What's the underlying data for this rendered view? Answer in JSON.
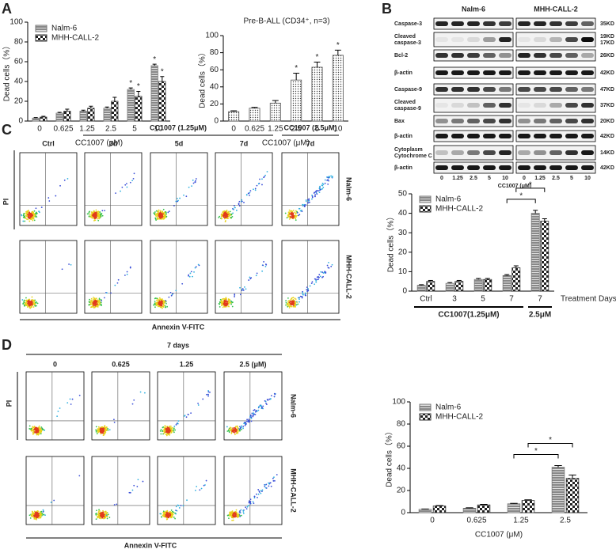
{
  "panels": [
    "A",
    "B",
    "C",
    "D"
  ],
  "blot": {
    "cell_lines": [
      "Nalm-6",
      "MHH-CALL-2"
    ],
    "rows": [
      {
        "label": [
          "Caspase-3"
        ],
        "kd": [
          "35KD"
        ]
      },
      {
        "label": [
          "Cleaved",
          "caspase-3"
        ],
        "kd": [
          "19KD",
          "17KD"
        ]
      },
      {
        "label": [
          "Bcl-2"
        ],
        "kd": [
          "26KD"
        ]
      },
      {
        "label": [
          "β-actin"
        ],
        "kd": [
          "42KD"
        ]
      },
      {
        "label": [
          "Caspase-9"
        ],
        "kd": [
          "47KD"
        ]
      },
      {
        "label": [
          "Cleaved",
          "caspase-9"
        ],
        "kd": [
          "37KD"
        ]
      },
      {
        "label": [
          "Bax"
        ],
        "kd": [
          "20KD"
        ]
      },
      {
        "label": [
          "β-actin"
        ],
        "kd": [
          "42KD"
        ]
      },
      {
        "label": [
          "Cytoplasm",
          "Cytochrome C"
        ],
        "kd": [
          "14KD"
        ]
      },
      {
        "label": [
          "β-actin"
        ],
        "kd": [
          "42KD"
        ]
      }
    ],
    "lanes": [
      "0",
      "1.25",
      "2.5",
      "5",
      "10"
    ],
    "x_label": "CC1007 (μM)"
  },
  "flow_c": {
    "header_groups": [
      "CC1007 (1.25μM)",
      "CC1007 (2.5μM)"
    ],
    "columns": [
      "Ctrl",
      "3d",
      "5d",
      "7d",
      "7d"
    ],
    "rows": [
      "Nalm-6",
      "MHH-CALL-2"
    ],
    "y_label": "PI",
    "x_label": "Annexin V-FITC"
  },
  "flow_d": {
    "header": "7 days",
    "columns": [
      "0",
      "0.625",
      "1.25",
      "2.5 (μM)"
    ],
    "rows": [
      "Nalm-6",
      "MHH-CALL-2"
    ],
    "y_label": "PI",
    "x_label": "Annexin V-FITC"
  },
  "chart_data": [
    {
      "type": "bar",
      "y_label": "Dead cells（%）",
      "x_label": "CC1007 (μM)",
      "categories": [
        "0",
        "0.625",
        "1.25",
        "2.5",
        "5",
        "10"
      ],
      "series": [
        {
          "name": "Nalm-6",
          "color": "#777777",
          "pattern": "lines",
          "values": [
            3,
            8,
            10,
            13,
            32,
            56
          ],
          "errors": [
            0.5,
            0.8,
            1,
            1.2,
            1.5,
            1.5
          ],
          "significance": [
            null,
            null,
            null,
            null,
            "*",
            "*"
          ]
        },
        {
          "name": "MHH-CALL-2",
          "color": "#333333",
          "pattern": "checks",
          "values": [
            4,
            10,
            13,
            20,
            25,
            40
          ],
          "errors": [
            0.8,
            2,
            2,
            4,
            5,
            5
          ],
          "significance": [
            null,
            null,
            null,
            null,
            "*",
            "*"
          ]
        }
      ],
      "ylim": [
        0,
        100
      ],
      "yticks": [
        0,
        20,
        40,
        60,
        80,
        100
      ],
      "legend": "upper left"
    },
    {
      "type": "bar",
      "title": "Pre-B-ALL (CD34⁺, n=3)",
      "y_label": "Dead cells（%）",
      "x_label": "CC1007 (μM)",
      "categories": [
        "0",
        "0.625",
        "1.25",
        "2.5",
        "5",
        "10"
      ],
      "series": [
        {
          "color": "#555555",
          "pattern": "dots",
          "values": [
            11,
            15,
            21,
            48,
            63,
            77
          ],
          "errors": [
            1,
            1,
            3,
            8,
            6,
            6
          ],
          "significance": [
            null,
            null,
            null,
            "*",
            "*",
            "*"
          ]
        }
      ],
      "ylim": [
        0,
        100
      ],
      "yticks": [
        0,
        20,
        40,
        60,
        80,
        100
      ]
    },
    {
      "type": "bar",
      "y_label": "Dead cells（%）",
      "x_label": "Treatment Days",
      "categories": [
        "Ctrl",
        "3",
        "5",
        "7",
        "7"
      ],
      "groups": [
        {
          "label": "CC1007(1.25μM)",
          "from": 0,
          "to": 3
        },
        {
          "label": "2.5μM",
          "from": 4,
          "to": 4
        }
      ],
      "series": [
        {
          "name": "Nalm-6",
          "color": "#777777",
          "pattern": "lines",
          "values": [
            3,
            4,
            6,
            8,
            40
          ],
          "errors": [
            0.3,
            0.4,
            0.5,
            0.5,
            1.5
          ]
        },
        {
          "name": "MHH-CALL-2",
          "color": "#333333",
          "pattern": "checks",
          "values": [
            5,
            5,
            6,
            12,
            36
          ],
          "errors": [
            0.5,
            0.5,
            0.5,
            1,
            1.2
          ]
        }
      ],
      "brackets": [
        {
          "from": 3,
          "to": 4,
          "series": 0,
          "label": "*"
        },
        {
          "from": 3,
          "to": 4,
          "series": 1,
          "label": "*"
        }
      ],
      "ylim": [
        0,
        50
      ],
      "yticks": [
        0,
        10,
        20,
        30,
        40,
        50
      ],
      "legend": "upper left"
    },
    {
      "type": "bar",
      "y_label": "Dead cells（%）",
      "x_label": "CC1007 (μM)",
      "categories": [
        "0",
        "0.625",
        "1.25",
        "2.5"
      ],
      "series": [
        {
          "name": "Nalm-6",
          "color": "#777777",
          "pattern": "lines",
          "values": [
            3,
            4,
            8,
            41
          ],
          "errors": [
            0.3,
            0.4,
            0.4,
            1.5
          ]
        },
        {
          "name": "MHH-CALL-2",
          "color": "#333333",
          "pattern": "checks",
          "values": [
            6,
            7,
            11,
            31
          ],
          "errors": [
            0.4,
            0.5,
            0.6,
            3
          ]
        }
      ],
      "brackets": [
        {
          "from": 2,
          "to": 3,
          "series": 0,
          "label": "*"
        },
        {
          "from": 2,
          "to": 3,
          "series": 1,
          "label": "*"
        }
      ],
      "ylim": [
        0,
        100
      ],
      "yticks": [
        0,
        20,
        40,
        60,
        80,
        100
      ],
      "legend": "upper left"
    }
  ]
}
